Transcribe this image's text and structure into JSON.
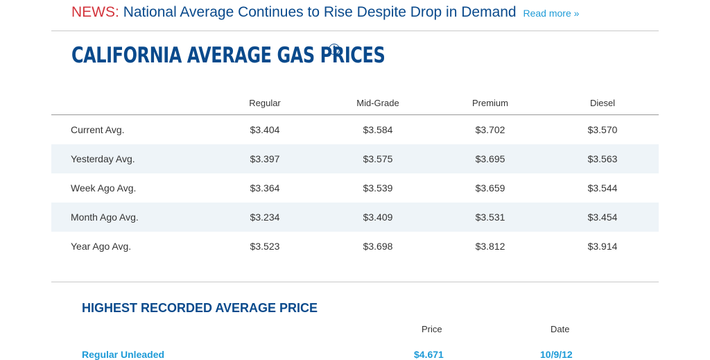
{
  "news": {
    "tag": "NEWS:",
    "headline": "National Average Continues to Rise Despite Drop in Demand",
    "read_more": "Read more »"
  },
  "title": "CALIFORNIA AVERAGE GAS PRICES",
  "info_icon": "i",
  "prices": {
    "headers": [
      "",
      "Regular",
      "Mid-Grade",
      "Premium",
      "Diesel"
    ],
    "rows": [
      {
        "label": "Current Avg.",
        "values": [
          "$3.404",
          "$3.584",
          "$3.702",
          "$3.570"
        ]
      },
      {
        "label": "Yesterday Avg.",
        "values": [
          "$3.397",
          "$3.575",
          "$3.695",
          "$3.563"
        ]
      },
      {
        "label": "Week Ago Avg.",
        "values": [
          "$3.364",
          "$3.539",
          "$3.659",
          "$3.544"
        ]
      },
      {
        "label": "Month Ago Avg.",
        "values": [
          "$3.234",
          "$3.409",
          "$3.531",
          "$3.454"
        ]
      },
      {
        "label": "Year Ago Avg.",
        "values": [
          "$3.523",
          "$3.698",
          "$3.812",
          "$3.914"
        ]
      }
    ]
  },
  "highest": {
    "title": "HIGHEST RECORDED AVERAGE PRICE",
    "price_header": "Price",
    "date_header": "Date",
    "rows": [
      {
        "label": "Regular Unleaded",
        "price": "$4.671",
        "date": "10/9/12"
      }
    ]
  },
  "colors": {
    "brand": "#0a4a8c",
    "news": "#d3343c",
    "link": "#1e9bd7",
    "alt_row": "#eef4f8"
  }
}
